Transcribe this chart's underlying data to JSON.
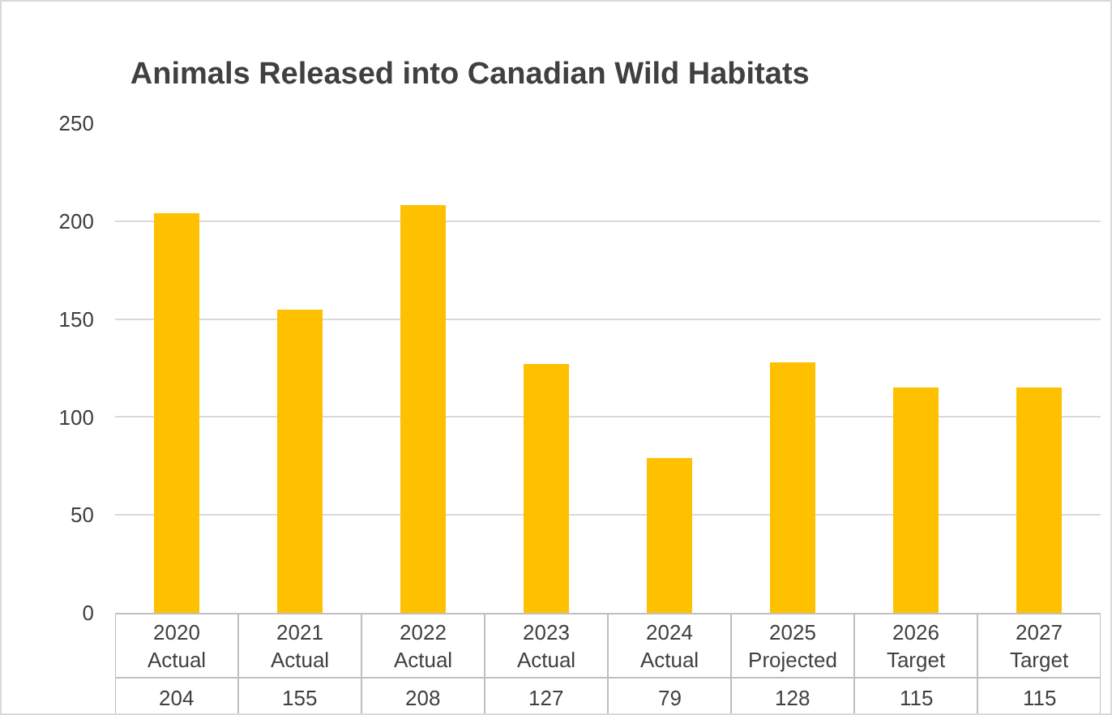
{
  "chart_data": {
    "type": "bar",
    "title": "Animals Released into Canadian Wild Habitats",
    "categories": [
      "2020\nActual",
      "2021\nActual",
      "2022\nActual",
      "2023\nActual",
      "2024\nActual",
      "2025\nProjected",
      "2026\nTarget",
      "2027\nTarget"
    ],
    "values": [
      204,
      155,
      208,
      127,
      79,
      128,
      115,
      115
    ],
    "color": "#ffc000",
    "ylim": [
      0,
      250
    ],
    "yticks": [
      0,
      50,
      100,
      150,
      200,
      250
    ],
    "grid": "y",
    "data_labels": true,
    "legend": false
  }
}
